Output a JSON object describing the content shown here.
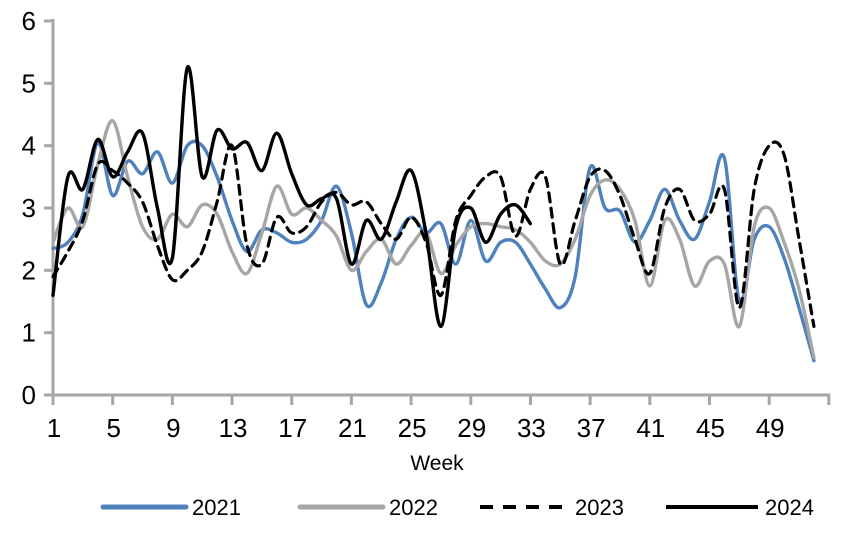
{
  "chart_data": {
    "type": "line",
    "title": "",
    "xlabel": "Week",
    "ylabel": "",
    "x_start_week": 1,
    "x_end_week": 52,
    "x_tick_labels": [
      1,
      5,
      9,
      13,
      17,
      21,
      25,
      29,
      33,
      37,
      41,
      45,
      49
    ],
    "ylim": [
      0,
      6
    ],
    "y_tick_labels": [
      0,
      1,
      2,
      3,
      4,
      5,
      6
    ],
    "grid": false,
    "legend_position": "bottom",
    "axis_color": "#A6A6A6",
    "text_color": "#000000",
    "series": [
      {
        "name": "2021",
        "color": "#4F81BD",
        "line_style": "solid",
        "weeks_start": 1,
        "values": [
          2.35,
          2.45,
          2.9,
          4.05,
          3.2,
          3.75,
          3.55,
          3.9,
          3.4,
          4.0,
          4.0,
          3.5,
          2.8,
          2.3,
          2.65,
          2.6,
          2.45,
          2.5,
          2.8,
          3.35,
          2.6,
          1.45,
          1.8,
          2.5,
          2.85,
          2.6,
          2.75,
          2.1,
          2.8,
          2.15,
          2.45,
          2.45,
          2.1,
          1.7,
          1.4,
          1.9,
          3.65,
          3.0,
          2.95,
          2.45,
          2.8,
          3.3,
          2.8,
          2.5,
          3.1,
          3.8,
          1.5,
          2.5,
          2.7,
          2.2,
          1.4,
          0.55
        ]
      },
      {
        "name": "2022",
        "color": "#A6A6A6",
        "line_style": "solid",
        "weeks_start": 1,
        "values": [
          2.45,
          3.0,
          2.7,
          3.7,
          4.4,
          3.5,
          2.7,
          2.5,
          2.9,
          2.7,
          3.05,
          2.9,
          2.3,
          1.95,
          2.6,
          3.35,
          2.9,
          3.0,
          2.8,
          2.55,
          2.0,
          2.3,
          2.5,
          2.1,
          2.4,
          2.6,
          1.95,
          2.4,
          2.7,
          2.75,
          2.7,
          2.65,
          2.45,
          2.15,
          2.1,
          2.5,
          3.2,
          3.45,
          3.3,
          2.8,
          1.75,
          2.8,
          2.5,
          1.75,
          2.15,
          2.1,
          1.1,
          2.7,
          3.0,
          2.45,
          1.7,
          0.6
        ]
      },
      {
        "name": "2023",
        "color": "#000000",
        "line_style": "dashed",
        "weeks_start": 1,
        "values": [
          1.9,
          2.3,
          2.8,
          3.7,
          3.6,
          3.4,
          3.1,
          2.4,
          1.85,
          2.0,
          2.3,
          3.1,
          4.0,
          2.4,
          2.1,
          2.85,
          2.6,
          2.7,
          3.1,
          3.25,
          3.05,
          3.1,
          2.75,
          2.5,
          2.85,
          2.45,
          1.6,
          2.8,
          3.2,
          3.5,
          3.5,
          2.55,
          3.3,
          3.5,
          2.1,
          2.8,
          3.5,
          3.6,
          3.2,
          2.5,
          1.95,
          3.0,
          3.3,
          2.8,
          2.9,
          3.3,
          1.4,
          3.3,
          4.0,
          3.85,
          2.5,
          1.1
        ]
      },
      {
        "name": "2024",
        "color": "#000000",
        "line_style": "solid",
        "weeks_start": 1,
        "values": [
          1.6,
          3.5,
          3.3,
          4.1,
          3.5,
          3.9,
          4.2,
          3.0,
          2.2,
          5.25,
          3.5,
          4.25,
          3.95,
          4.05,
          3.6,
          4.2,
          3.55,
          3.05,
          3.15,
          3.15,
          2.1,
          2.8,
          2.5,
          3.1,
          3.6,
          2.6,
          1.1,
          2.7,
          3.0,
          2.45,
          2.9,
          3.05,
          2.75
        ]
      }
    ]
  }
}
